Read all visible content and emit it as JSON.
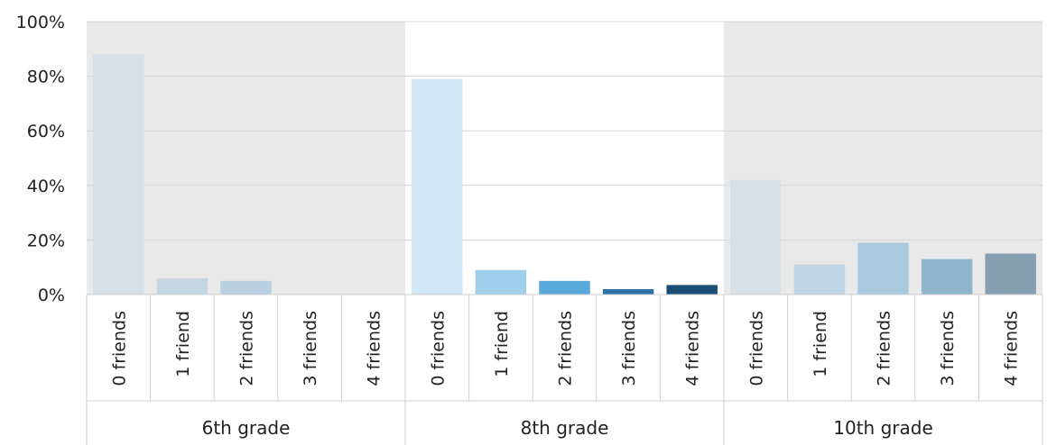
{
  "chart_data": {
    "type": "bar",
    "ylim": [
      0,
      100
    ],
    "y_ticks": [
      "0%",
      "20%",
      "40%",
      "60%",
      "80%",
      "100%"
    ],
    "grid": true,
    "groups": [
      {
        "name": "6th grade",
        "shaded": true,
        "categories": [
          "0 friends",
          "1 friend",
          "2 friends",
          "3 friends",
          "4 friends"
        ],
        "values": [
          88,
          6,
          5,
          0,
          0
        ],
        "colors": [
          "#d6e0e8",
          "#c6d7e4",
          "#b8d0e1",
          "#a9c5d9",
          "#98b6cc"
        ]
      },
      {
        "name": "8th grade",
        "shaded": false,
        "categories": [
          "0 friends",
          "1 friend",
          "2 friends",
          "3 friends",
          "4 friends"
        ],
        "values": [
          79,
          9,
          5,
          2,
          3.5
        ],
        "colors": [
          "#d3e8f5",
          "#9fcfea",
          "#59a9dc",
          "#2c72a4",
          "#1a4e74"
        ]
      },
      {
        "name": "10th grade",
        "shaded": true,
        "categories": [
          "0 friends",
          "1 friend",
          "2 friends",
          "3 friends",
          "4 friends"
        ],
        "values": [
          42,
          11,
          19,
          13,
          15
        ],
        "colors": [
          "#d6e0e8",
          "#bfd5e6",
          "#a8c9de",
          "#8fb5cc",
          "#869fb0"
        ]
      }
    ]
  }
}
